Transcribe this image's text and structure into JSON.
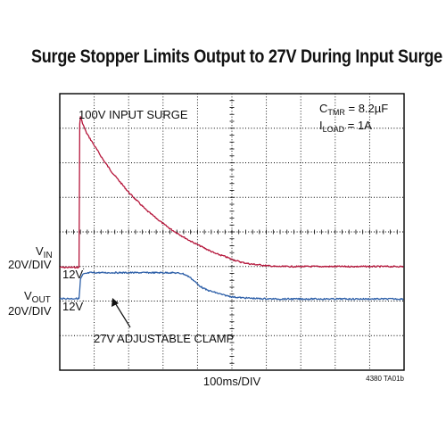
{
  "title": "Surge Stopper Limits Output to 27V During Input Surge",
  "annotations": {
    "surge": "100V INPUT SURGE",
    "clamp": "27V ADJUSTABLE CLAMP",
    "ctmr_prefix": "C",
    "ctmr_sub": "TMR",
    "ctmr_value": " = 8.2µF",
    "iload_prefix": "I",
    "iload_sub": "LOAD",
    "iload_value": " = 1A",
    "vin_level": "12V",
    "vout_level": "12V"
  },
  "labels": {
    "vin_prefix": "V",
    "vin_sub": "IN",
    "vin_scale": "20V/DIV",
    "vout_prefix": "V",
    "vout_sub": "OUT",
    "vout_scale": "20V/DIV",
    "xlabel": "100ms/DIV",
    "figure_id": "4380 TA01b"
  },
  "colors": {
    "vin": "#b5163b",
    "vout": "#2d5fa8",
    "grid": "#000000"
  },
  "chart_data": {
    "type": "line",
    "x_divisions": 10,
    "y_divisions": 8,
    "x_unit": "ms",
    "x_per_div": 100,
    "series": [
      {
        "key": "vin",
        "name": "VIN",
        "volts_per_div": 20,
        "x": [
          0,
          20,
          29,
          30,
          31,
          32,
          35,
          40,
          50,
          75,
          100,
          125,
          150,
          175,
          200,
          225,
          250,
          275,
          300,
          325,
          350,
          375,
          400,
          425,
          450,
          475,
          500,
          525,
          550,
          575,
          600,
          650,
          700,
          750,
          800,
          850,
          900,
          950,
          1000
        ],
        "y": [
          12,
          12,
          12,
          58,
          95,
          100,
          98,
          95,
          90,
          82,
          74,
          67,
          61,
          55,
          50,
          45,
          41,
          37,
          33.5,
          30.5,
          27.5,
          25,
          22.5,
          20,
          18.5,
          16.5,
          15,
          14,
          13.5,
          13,
          12.5,
          12.5,
          12.5,
          12.5,
          12.5,
          12.5,
          12.5,
          12.5,
          12.5
        ]
      },
      {
        "key": "vout",
        "name": "VOUT",
        "volts_per_div": 20,
        "x": [
          0,
          20,
          29,
          30,
          33,
          40,
          60,
          100,
          150,
          200,
          250,
          300,
          330,
          350,
          365,
          375,
          390,
          400,
          425,
          450,
          475,
          500,
          550,
          600,
          650,
          700,
          750,
          800,
          850,
          900,
          950,
          1000
        ],
        "y": [
          12,
          12,
          12,
          14,
          23,
          26,
          27,
          27,
          27,
          27,
          27,
          27,
          26.5,
          24.5,
          22,
          20,
          18,
          17,
          15.5,
          14,
          13,
          12.5,
          12,
          11.8,
          11.8,
          11.8,
          11.8,
          11.8,
          11.8,
          11.8,
          11.8,
          11.8
        ]
      }
    ]
  }
}
